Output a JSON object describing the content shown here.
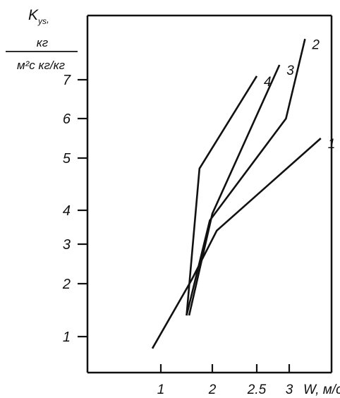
{
  "chart_data": {
    "type": "line",
    "ylabel_symbol": "K",
    "ylabel_sub": "ys",
    "ylabel_comma": ",",
    "ylabel_unit_top": "кг",
    "ylabel_unit_bottom": "м²с кг/кг",
    "xlabel": "W, м/с",
    "x_ticks": [
      {
        "value": 1,
        "label": "1"
      },
      {
        "value": 2,
        "label": "2"
      },
      {
        "value": 2.5,
        "label": "2.5"
      },
      {
        "value": 3,
        "label": "3"
      }
    ],
    "y_ticks": [
      {
        "value": 1,
        "label": "1"
      },
      {
        "value": 2,
        "label": "2"
      },
      {
        "value": 3,
        "label": "3"
      },
      {
        "value": 4,
        "label": "4"
      },
      {
        "value": 5,
        "label": "5"
      },
      {
        "value": 6,
        "label": "6"
      },
      {
        "value": 7,
        "label": "7"
      }
    ],
    "series": [
      {
        "name": "1",
        "points": [
          [
            0.9,
            0.7
          ],
          [
            1.6,
            2.1
          ],
          [
            2.05,
            3.4
          ],
          [
            3.4,
            5.5
          ]
        ]
      },
      {
        "name": "2",
        "points": [
          [
            1.5,
            1.4
          ],
          [
            1.95,
            3.7
          ],
          [
            2.95,
            6.0
          ],
          [
            3.2,
            8.1
          ]
        ]
      },
      {
        "name": "3",
        "points": [
          [
            1.55,
            1.4
          ],
          [
            2.0,
            3.9
          ],
          [
            2.85,
            7.4
          ]
        ]
      },
      {
        "name": "4",
        "points": [
          [
            1.5,
            1.4
          ],
          [
            1.75,
            4.8
          ],
          [
            2.5,
            7.1
          ]
        ]
      }
    ],
    "grid": false
  }
}
